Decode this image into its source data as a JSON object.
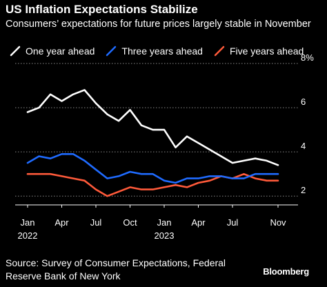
{
  "title": "US Inflation Expectations Stabilize",
  "subtitle": "Consumers’ expectations for future prices largely stable in November",
  "source": "Source: Survey of Consumer Expectations, Federal Reserve Bank of New York",
  "brand": "Bloomberg",
  "chart_data": {
    "type": "line",
    "title": "US Inflation Expectations Stabilize",
    "subtitle": "Consumers’ expectations for future prices largely stable in November",
    "xlabel": "",
    "ylabel": "",
    "y_unit": "%",
    "ylim": [
      1.6,
      8.0
    ],
    "yticks": [
      2,
      4,
      6,
      8
    ],
    "ytick_labels": [
      "2",
      "4",
      "6",
      "8%"
    ],
    "grid": "horizontal dotted",
    "legend_position": "top",
    "x": [
      "2022-01",
      "2022-02",
      "2022-03",
      "2022-04",
      "2022-05",
      "2022-06",
      "2022-07",
      "2022-08",
      "2022-09",
      "2022-10",
      "2022-11",
      "2022-12",
      "2023-01",
      "2023-02",
      "2023-03",
      "2023-04",
      "2023-05",
      "2023-06",
      "2023-07",
      "2023-08",
      "2023-09",
      "2023-10",
      "2023-11"
    ],
    "xticks": [
      {
        "at": "2022-01",
        "label": "Jan",
        "year": "2022"
      },
      {
        "at": "2022-04",
        "label": "Apr",
        "year": ""
      },
      {
        "at": "2022-07",
        "label": "Jul",
        "year": ""
      },
      {
        "at": "2022-10",
        "label": "Oct",
        "year": ""
      },
      {
        "at": "2023-01",
        "label": "Jan",
        "year": "2023"
      },
      {
        "at": "2023-04",
        "label": "Apr",
        "year": ""
      },
      {
        "at": "2023-07",
        "label": "Jul",
        "year": ""
      },
      {
        "at": "2023-11",
        "label": "Nov",
        "year": ""
      }
    ],
    "series": [
      {
        "name": "One year ahead",
        "color": "#ffffff",
        "values": [
          5.8,
          6.0,
          6.6,
          6.3,
          6.6,
          6.8,
          6.2,
          5.7,
          5.4,
          5.9,
          5.2,
          5.0,
          5.0,
          4.2,
          4.7,
          4.4,
          4.1,
          3.8,
          3.5,
          3.6,
          3.7,
          3.6,
          3.4
        ]
      },
      {
        "name": "Three years ahead",
        "color": "#1f6bff",
        "values": [
          3.5,
          3.8,
          3.7,
          3.9,
          3.9,
          3.6,
          3.2,
          2.8,
          2.9,
          3.1,
          3.0,
          3.0,
          2.7,
          2.6,
          2.8,
          2.8,
          2.9,
          2.9,
          2.8,
          2.8,
          3.0,
          3.0,
          3.0
        ]
      },
      {
        "name": "Five years ahead",
        "color": "#ff5a3a",
        "values": [
          3.0,
          3.0,
          3.0,
          2.9,
          2.8,
          2.7,
          2.3,
          2.0,
          2.2,
          2.4,
          2.3,
          2.3,
          2.4,
          2.5,
          2.4,
          2.6,
          2.7,
          2.9,
          2.8,
          3.0,
          2.8,
          2.7,
          2.7
        ]
      }
    ]
  }
}
